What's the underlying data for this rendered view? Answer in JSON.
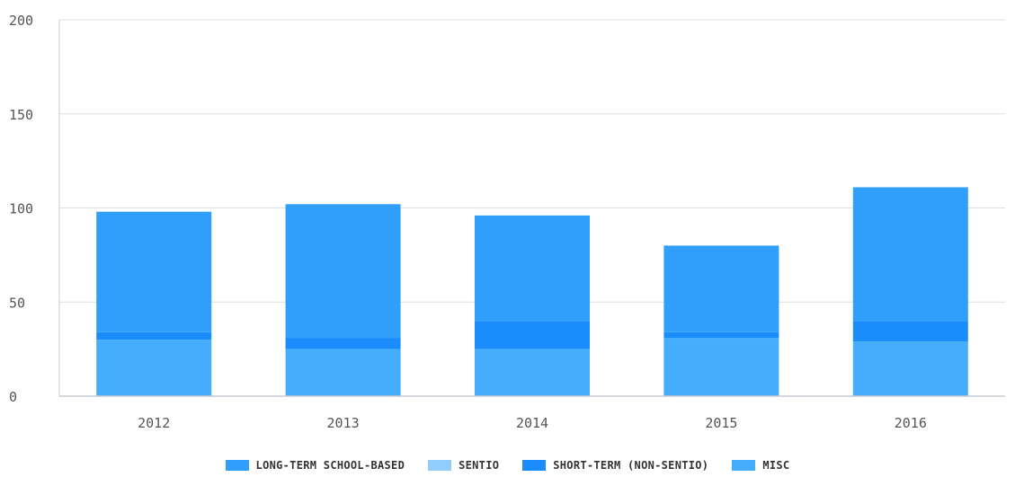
{
  "chart_data": {
    "type": "bar",
    "stacked": true,
    "categories": [
      "2012",
      "2013",
      "2014",
      "2015",
      "2016"
    ],
    "series": [
      {
        "name": "MISC",
        "color": "#45aefc",
        "values": [
          30,
          25,
          25,
          31,
          29
        ]
      },
      {
        "name": "SHORT-TERM (NON-SENTIO)",
        "color": "#1a8cfb",
        "values": [
          4,
          6,
          15,
          3,
          11
        ]
      },
      {
        "name": "SENTIO",
        "color": "#90cdfd",
        "values": [
          0,
          0,
          0,
          0,
          0
        ]
      },
      {
        "name": "LONG-TERM SCHOOL-BASED",
        "color": "#2f9ffb",
        "values": [
          64,
          71,
          56,
          46,
          71
        ]
      }
    ],
    "legend_order": [
      "LONG-TERM SCHOOL-BASED",
      "SENTIO",
      "SHORT-TERM (NON-SENTIO)",
      "MISC"
    ],
    "y_ticks": [
      "0",
      "50",
      "100",
      "150",
      "200"
    ],
    "ylim": [
      0,
      200
    ],
    "grid": true,
    "legend_position": "bottom-center",
    "title": "",
    "xlabel": "",
    "ylabel": ""
  }
}
